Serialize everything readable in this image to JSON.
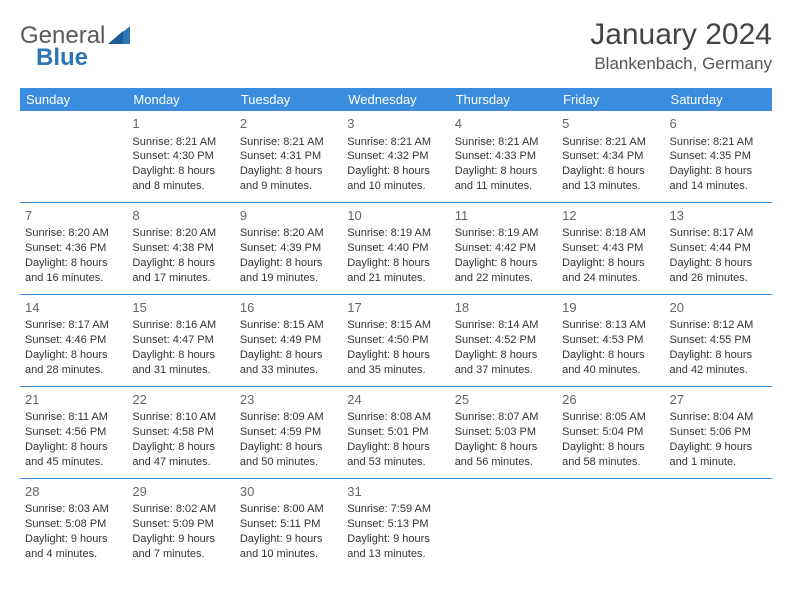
{
  "logo": {
    "text_general": "General",
    "text_blue": "Blue"
  },
  "header": {
    "month": "January 2024",
    "location": "Blankenbach, Germany"
  },
  "weekdays": [
    "Sunday",
    "Monday",
    "Tuesday",
    "Wednesday",
    "Thursday",
    "Friday",
    "Saturday"
  ],
  "theme": {
    "header_bg": "#3a8dde",
    "header_fg": "#ffffff",
    "rule": "#3a8dde"
  },
  "weeks": [
    [
      null,
      {
        "d": "1",
        "l": [
          "Sunrise: 8:21 AM",
          "Sunset: 4:30 PM",
          "Daylight: 8 hours",
          "and 8 minutes."
        ]
      },
      {
        "d": "2",
        "l": [
          "Sunrise: 8:21 AM",
          "Sunset: 4:31 PM",
          "Daylight: 8 hours",
          "and 9 minutes."
        ]
      },
      {
        "d": "3",
        "l": [
          "Sunrise: 8:21 AM",
          "Sunset: 4:32 PM",
          "Daylight: 8 hours",
          "and 10 minutes."
        ]
      },
      {
        "d": "4",
        "l": [
          "Sunrise: 8:21 AM",
          "Sunset: 4:33 PM",
          "Daylight: 8 hours",
          "and 11 minutes."
        ]
      },
      {
        "d": "5",
        "l": [
          "Sunrise: 8:21 AM",
          "Sunset: 4:34 PM",
          "Daylight: 8 hours",
          "and 13 minutes."
        ]
      },
      {
        "d": "6",
        "l": [
          "Sunrise: 8:21 AM",
          "Sunset: 4:35 PM",
          "Daylight: 8 hours",
          "and 14 minutes."
        ]
      }
    ],
    [
      {
        "d": "7",
        "l": [
          "Sunrise: 8:20 AM",
          "Sunset: 4:36 PM",
          "Daylight: 8 hours",
          "and 16 minutes."
        ]
      },
      {
        "d": "8",
        "l": [
          "Sunrise: 8:20 AM",
          "Sunset: 4:38 PM",
          "Daylight: 8 hours",
          "and 17 minutes."
        ]
      },
      {
        "d": "9",
        "l": [
          "Sunrise: 8:20 AM",
          "Sunset: 4:39 PM",
          "Daylight: 8 hours",
          "and 19 minutes."
        ]
      },
      {
        "d": "10",
        "l": [
          "Sunrise: 8:19 AM",
          "Sunset: 4:40 PM",
          "Daylight: 8 hours",
          "and 21 minutes."
        ]
      },
      {
        "d": "11",
        "l": [
          "Sunrise: 8:19 AM",
          "Sunset: 4:42 PM",
          "Daylight: 8 hours",
          "and 22 minutes."
        ]
      },
      {
        "d": "12",
        "l": [
          "Sunrise: 8:18 AM",
          "Sunset: 4:43 PM",
          "Daylight: 8 hours",
          "and 24 minutes."
        ]
      },
      {
        "d": "13",
        "l": [
          "Sunrise: 8:17 AM",
          "Sunset: 4:44 PM",
          "Daylight: 8 hours",
          "and 26 minutes."
        ]
      }
    ],
    [
      {
        "d": "14",
        "l": [
          "Sunrise: 8:17 AM",
          "Sunset: 4:46 PM",
          "Daylight: 8 hours",
          "and 28 minutes."
        ]
      },
      {
        "d": "15",
        "l": [
          "Sunrise: 8:16 AM",
          "Sunset: 4:47 PM",
          "Daylight: 8 hours",
          "and 31 minutes."
        ]
      },
      {
        "d": "16",
        "l": [
          "Sunrise: 8:15 AM",
          "Sunset: 4:49 PM",
          "Daylight: 8 hours",
          "and 33 minutes."
        ]
      },
      {
        "d": "17",
        "l": [
          "Sunrise: 8:15 AM",
          "Sunset: 4:50 PM",
          "Daylight: 8 hours",
          "and 35 minutes."
        ]
      },
      {
        "d": "18",
        "l": [
          "Sunrise: 8:14 AM",
          "Sunset: 4:52 PM",
          "Daylight: 8 hours",
          "and 37 minutes."
        ]
      },
      {
        "d": "19",
        "l": [
          "Sunrise: 8:13 AM",
          "Sunset: 4:53 PM",
          "Daylight: 8 hours",
          "and 40 minutes."
        ]
      },
      {
        "d": "20",
        "l": [
          "Sunrise: 8:12 AM",
          "Sunset: 4:55 PM",
          "Daylight: 8 hours",
          "and 42 minutes."
        ]
      }
    ],
    [
      {
        "d": "21",
        "l": [
          "Sunrise: 8:11 AM",
          "Sunset: 4:56 PM",
          "Daylight: 8 hours",
          "and 45 minutes."
        ]
      },
      {
        "d": "22",
        "l": [
          "Sunrise: 8:10 AM",
          "Sunset: 4:58 PM",
          "Daylight: 8 hours",
          "and 47 minutes."
        ]
      },
      {
        "d": "23",
        "l": [
          "Sunrise: 8:09 AM",
          "Sunset: 4:59 PM",
          "Daylight: 8 hours",
          "and 50 minutes."
        ]
      },
      {
        "d": "24",
        "l": [
          "Sunrise: 8:08 AM",
          "Sunset: 5:01 PM",
          "Daylight: 8 hours",
          "and 53 minutes."
        ]
      },
      {
        "d": "25",
        "l": [
          "Sunrise: 8:07 AM",
          "Sunset: 5:03 PM",
          "Daylight: 8 hours",
          "and 56 minutes."
        ]
      },
      {
        "d": "26",
        "l": [
          "Sunrise: 8:05 AM",
          "Sunset: 5:04 PM",
          "Daylight: 8 hours",
          "and 58 minutes."
        ]
      },
      {
        "d": "27",
        "l": [
          "Sunrise: 8:04 AM",
          "Sunset: 5:06 PM",
          "Daylight: 9 hours",
          "and 1 minute."
        ]
      }
    ],
    [
      {
        "d": "28",
        "l": [
          "Sunrise: 8:03 AM",
          "Sunset: 5:08 PM",
          "Daylight: 9 hours",
          "and 4 minutes."
        ]
      },
      {
        "d": "29",
        "l": [
          "Sunrise: 8:02 AM",
          "Sunset: 5:09 PM",
          "Daylight: 9 hours",
          "and 7 minutes."
        ]
      },
      {
        "d": "30",
        "l": [
          "Sunrise: 8:00 AM",
          "Sunset: 5:11 PM",
          "Daylight: 9 hours",
          "and 10 minutes."
        ]
      },
      {
        "d": "31",
        "l": [
          "Sunrise: 7:59 AM",
          "Sunset: 5:13 PM",
          "Daylight: 9 hours",
          "and 13 minutes."
        ]
      },
      null,
      null,
      null
    ]
  ]
}
